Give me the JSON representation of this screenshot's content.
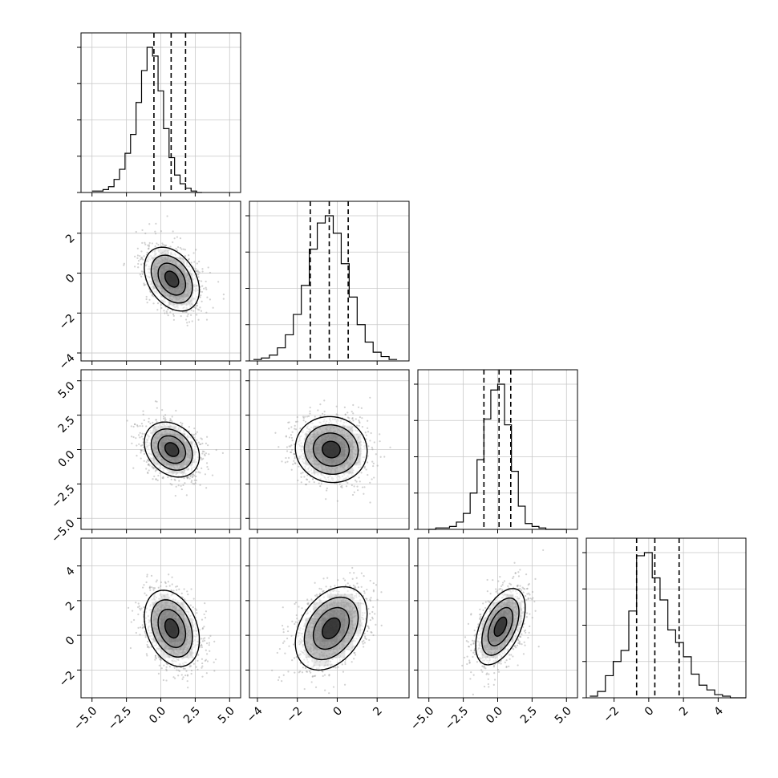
{
  "chart_data": {
    "type": "corner",
    "title": "",
    "n_parameters": 4,
    "parameter_labels": [
      "",
      "",
      "",
      ""
    ],
    "grid": true,
    "colors": {
      "line": "#000000",
      "scatter": "#9a9a9a",
      "grid": "#c8c8c8",
      "density": "#000000"
    },
    "axis_ranges": [
      [
        -5.8,
        5.8
      ],
      [
        -4.4,
        3.6
      ],
      [
        -5.8,
        5.8
      ],
      [
        -3.6,
        5.6
      ]
    ],
    "ylim_2d": [
      null,
      [
        -4.4,
        3.6
      ],
      [
        -5.8,
        5.8
      ],
      [
        -3.6,
        5.6
      ]
    ],
    "x_tick_labels": [
      [
        "−5.0",
        "−2.5",
        "0.0",
        "2.5",
        "5.0"
      ],
      [
        "−4",
        "−2",
        "0",
        "2"
      ],
      [
        "−5.0",
        "−2.5",
        "0.0",
        "2.5",
        "5.0"
      ],
      [
        "−2",
        "0",
        "2",
        "4"
      ]
    ],
    "x_tick_values": [
      [
        -5,
        -2.5,
        0,
        2.5,
        5
      ],
      [
        -4,
        -2,
        0,
        2
      ],
      [
        -5,
        -2.5,
        0,
        2.5,
        5
      ],
      [
        -2,
        0,
        2,
        4
      ]
    ],
    "y_tick_labels": [
      null,
      [
        "2",
        "0",
        "−2",
        "−4"
      ],
      [
        "5.0",
        "2.5",
        "0.0",
        "−2.5",
        "−5.0"
      ],
      [
        "4",
        "2",
        "0",
        "−2"
      ]
    ],
    "y_tick_values": [
      null,
      [
        2,
        0,
        -2,
        -4
      ],
      [
        5,
        2.5,
        0,
        -2.5,
        -5
      ],
      [
        4,
        2,
        0,
        -2
      ]
    ],
    "quantiles": [
      [
        -0.5,
        0.75,
        1.8
      ],
      [
        -1.35,
        -0.4,
        0.55
      ],
      [
        -1.0,
        0.1,
        0.95
      ],
      [
        -0.7,
        0.35,
        1.75
      ]
    ],
    "histograms": [
      {
        "edges_min": -5.0,
        "bin_width": 0.4,
        "counts": [
          1,
          1,
          2,
          4,
          9,
          16,
          27,
          40,
          62,
          84,
          100,
          94,
          70,
          44,
          24,
          12,
          6,
          3,
          1,
          0
        ]
      },
      {
        "edges_min": -4.2,
        "bin_width": 0.4,
        "counts": [
          1,
          2,
          4,
          9,
          18,
          32,
          52,
          77,
          95,
          100,
          88,
          67,
          44,
          25,
          13,
          6,
          3,
          1
        ]
      },
      {
        "edges_min": -5.0,
        "bin_width": 0.5,
        "counts": [
          0,
          1,
          1,
          2,
          5,
          11,
          25,
          48,
          76,
          96,
          100,
          72,
          40,
          16,
          4,
          2,
          1,
          0,
          0,
          0
        ]
      },
      {
        "edges_min": -3.4,
        "bin_width": 0.45,
        "counts": [
          1,
          4,
          14,
          23,
          30,
          55,
          90,
          92,
          76,
          62,
          43,
          35,
          26,
          15,
          8,
          5,
          2,
          1,
          0,
          0
        ]
      }
    ],
    "panels_2d": [
      {
        "row": 1,
        "col": 0,
        "center": [
          0.8,
          -0.3
        ],
        "sigma": [
          1.0,
          0.8
        ],
        "rho": -0.35
      },
      {
        "row": 2,
        "col": 0,
        "center": [
          0.8,
          0.0
        ],
        "sigma": [
          1.0,
          1.0
        ],
        "rho": -0.25
      },
      {
        "row": 2,
        "col": 1,
        "center": [
          -0.3,
          0.0
        ],
        "sigma": [
          0.9,
          1.2
        ],
        "rho": -0.05
      },
      {
        "row": 3,
        "col": 0,
        "center": [
          0.8,
          0.4
        ],
        "sigma": [
          1.0,
          1.1
        ],
        "rho": -0.3
      },
      {
        "row": 3,
        "col": 1,
        "center": [
          -0.3,
          0.4
        ],
        "sigma": [
          0.9,
          1.2
        ],
        "rho": 0.35
      },
      {
        "row": 3,
        "col": 2,
        "center": [
          0.2,
          0.5
        ],
        "sigma": [
          0.9,
          1.1
        ],
        "rho": 0.5
      }
    ]
  }
}
